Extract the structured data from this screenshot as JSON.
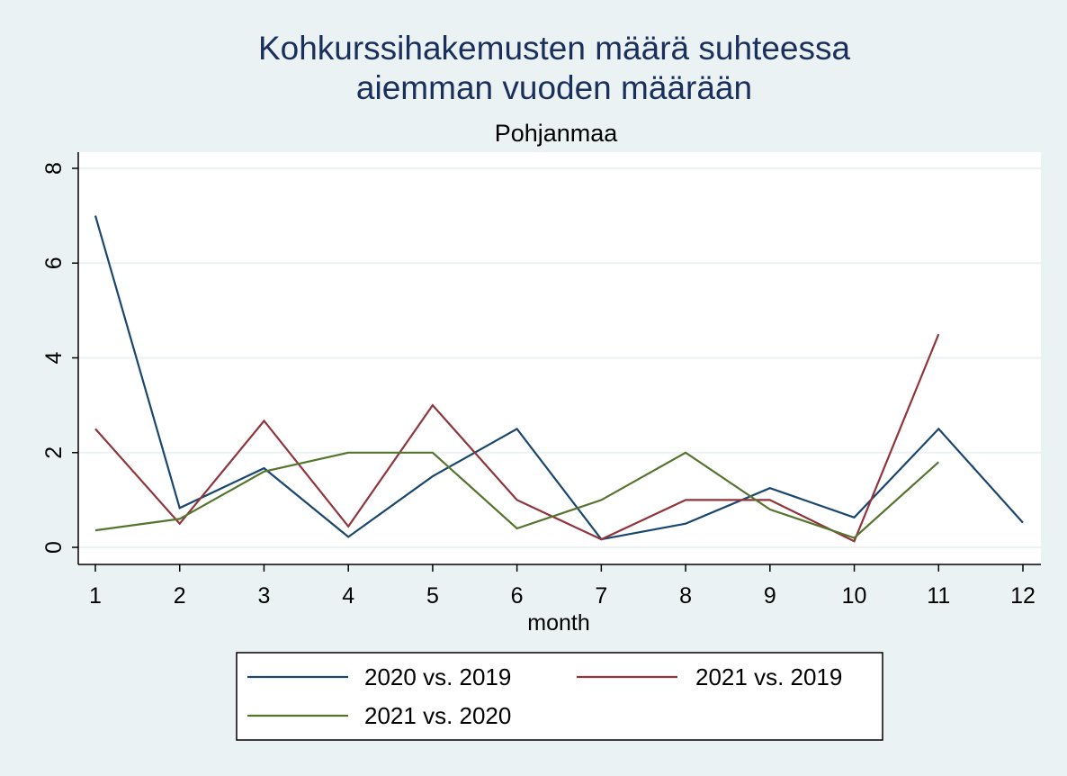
{
  "chart_data": {
    "type": "line",
    "title_lines": [
      "Kohkurssihakemusten määrä suhteessa",
      "aiemman vuoden määrään"
    ],
    "subtitle": "Pohjanmaa",
    "xlabel": "month",
    "ylabel": "",
    "x": [
      1,
      2,
      3,
      4,
      5,
      6,
      7,
      8,
      9,
      10,
      11,
      12
    ],
    "x_ticks": [
      "1",
      "2",
      "3",
      "4",
      "5",
      "6",
      "7",
      "8",
      "9",
      "10",
      "11",
      "12"
    ],
    "y_ticks": [
      "0",
      "2",
      "4",
      "6",
      "8"
    ],
    "xlim": [
      1,
      12
    ],
    "ylim": [
      0,
      8
    ],
    "grid": true,
    "legend_position": "bottom",
    "series": [
      {
        "name": "2020 vs. 2019",
        "color": "#1a476f",
        "values": [
          7.0,
          0.83,
          1.67,
          0.22,
          1.5,
          2.5,
          0.17,
          0.5,
          1.25,
          0.63,
          2.5,
          0.52
        ]
      },
      {
        "name": "2021 vs. 2019",
        "color": "#90353b",
        "values": [
          2.5,
          0.5,
          2.67,
          0.44,
          3.0,
          1.0,
          0.17,
          1.0,
          1.0,
          0.13,
          4.5,
          null
        ]
      },
      {
        "name": "2021 vs. 2020",
        "color": "#55752f",
        "values": [
          0.36,
          0.6,
          1.6,
          2.0,
          2.0,
          0.4,
          1.0,
          2.0,
          0.8,
          0.2,
          1.8,
          null
        ]
      }
    ]
  }
}
